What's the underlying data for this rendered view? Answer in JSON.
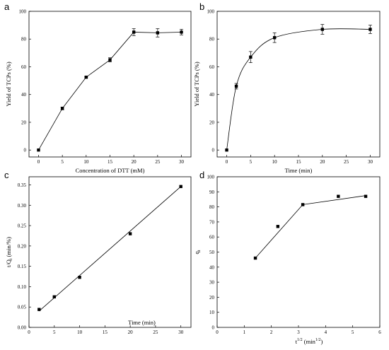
{
  "chart_data": [
    {
      "panel": "a",
      "type": "line",
      "xlabel": "Concentration of DTT (mM)",
      "ylabel": "Yield of TCPs (%)",
      "xlim": [
        -2,
        32
      ],
      "ylim": [
        -5,
        100
      ],
      "xticks": [
        0,
        5,
        10,
        15,
        20,
        25,
        30
      ],
      "yticks": [
        0,
        20,
        40,
        60,
        80,
        100
      ],
      "x": [
        0,
        5,
        10,
        15,
        20,
        25,
        30
      ],
      "y": [
        0,
        30,
        52.5,
        65,
        85,
        84.5,
        85
      ],
      "error": [
        0,
        1,
        0.5,
        1.5,
        2.5,
        3,
        2
      ],
      "markers": "square",
      "connect": "polyline",
      "grid": false,
      "legend": "none"
    },
    {
      "panel": "b",
      "type": "line",
      "xlabel": "Time (min)",
      "ylabel": "Yield of TCPs (%)",
      "xlim": [
        -2,
        32
      ],
      "ylim": [
        -5,
        100
      ],
      "xticks": [
        0,
        5,
        10,
        15,
        20,
        25,
        30
      ],
      "yticks": [
        0,
        20,
        40,
        60,
        80,
        100
      ],
      "x": [
        0,
        2,
        5,
        10,
        20,
        30
      ],
      "y": [
        0,
        46,
        67,
        81,
        87,
        87
      ],
      "error": [
        0,
        2,
        4,
        3.5,
        3.5,
        3
      ],
      "markers": "square",
      "connect": "smooth",
      "grid": false,
      "legend": "none"
    },
    {
      "panel": "c",
      "type": "scatter",
      "xlabel": "Time (min)",
      "ylabel_main": "t/Q",
      "ylabel_sub": "t",
      "ylabel_unit": " (min/%)",
      "xlim": [
        0,
        32
      ],
      "ylim": [
        0,
        0.37
      ],
      "xticks": [
        0,
        5,
        10,
        15,
        20,
        25,
        30
      ],
      "yticks": [
        "0.00",
        "0.05",
        "0.10",
        "0.15",
        "0.20",
        "0.25",
        "0.30",
        "0.35"
      ],
      "ytick_values": [
        0,
        0.05,
        0.1,
        0.15,
        0.2,
        0.25,
        0.3,
        0.35
      ],
      "x": [
        2,
        5,
        10,
        20,
        30
      ],
      "y": [
        0.044,
        0.075,
        0.123,
        0.23,
        0.346
      ],
      "fit_line": [
        [
          2,
          0.04
        ],
        [
          30,
          0.346
        ]
      ],
      "markers": "square",
      "grid": false,
      "legend": "none"
    },
    {
      "panel": "d",
      "type": "scatter",
      "xlabel_main": "t",
      "xlabel_sup": "1/2",
      "xlabel_unit": " (min",
      "xlabel_unit_sup": "1/2",
      "xlabel_close": ")",
      "ylabel_main": "q",
      "ylabel_sub": "t",
      "xlim": [
        0,
        6
      ],
      "ylim": [
        0,
        100
      ],
      "xticks": [
        0,
        1,
        2,
        3,
        4,
        5,
        6
      ],
      "yticks": [
        0,
        10,
        20,
        30,
        40,
        50,
        60,
        70,
        80,
        90,
        100
      ],
      "x": [
        1.41,
        2.24,
        3.16,
        4.47,
        5.48
      ],
      "y": [
        46,
        67,
        81.5,
        87,
        87
      ],
      "fit_segments": [
        [
          [
            1.41,
            46
          ],
          [
            3.16,
            81.5
          ]
        ],
        [
          [
            3.16,
            81.5
          ],
          [
            5.48,
            87.5
          ]
        ]
      ],
      "markers": "square",
      "grid": false,
      "legend": "none"
    }
  ]
}
